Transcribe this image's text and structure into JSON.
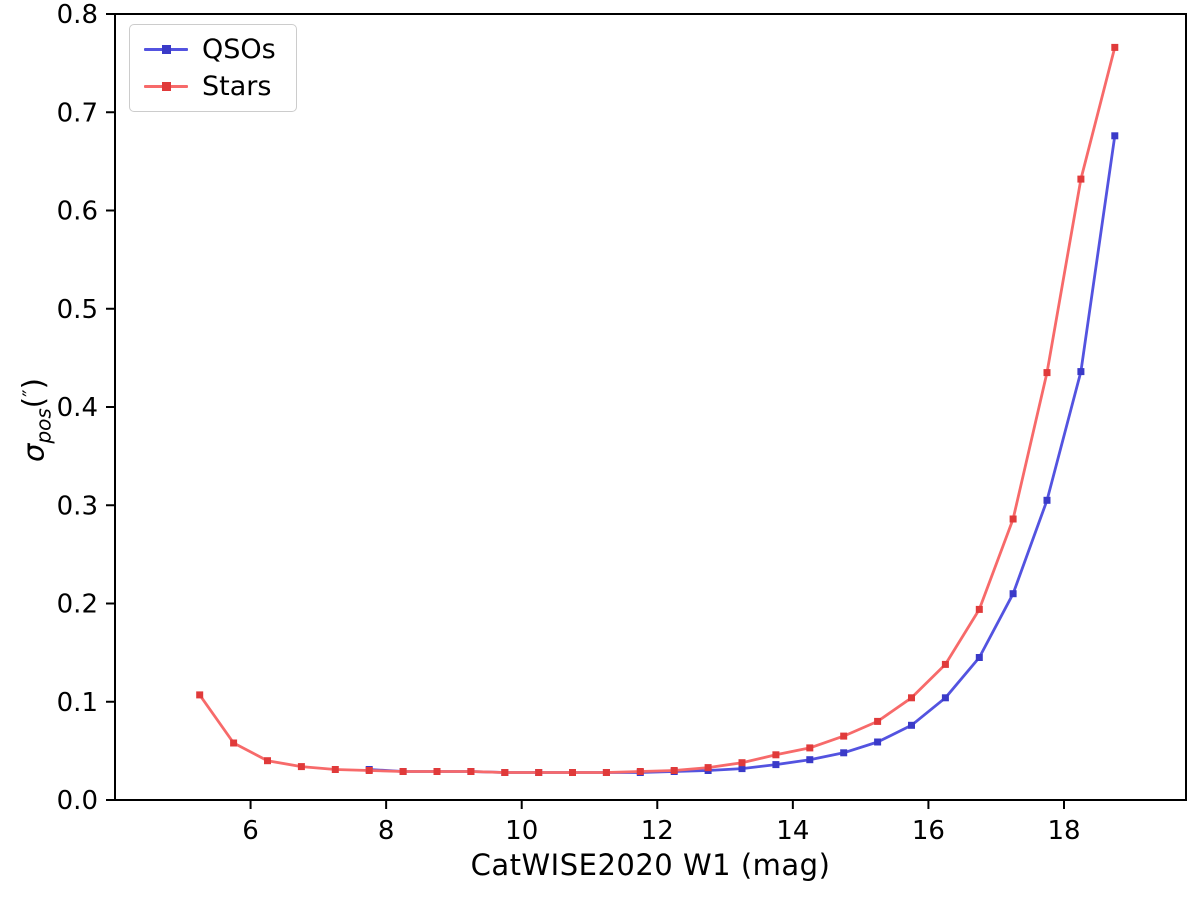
{
  "figure": {
    "background": "#ffffff",
    "frame_color": "#000000"
  },
  "chart_data": {
    "type": "line",
    "title": "",
    "xlabel": "CatWISE2020 W1 (mag)",
    "ylabel_parts": {
      "symbol": "σ",
      "subscript": "pos",
      "paren_open": "(",
      "primes": "″",
      "paren_close": ")"
    },
    "xlim": [
      4.0,
      19.8
    ],
    "ylim": [
      0.0,
      0.8
    ],
    "xticks": [
      6,
      8,
      10,
      12,
      14,
      16,
      18
    ],
    "yticks": [
      0.0,
      0.1,
      0.2,
      0.3,
      0.4,
      0.5,
      0.6,
      0.7,
      0.8
    ],
    "grid": false,
    "legend": {
      "position": "upper-left",
      "border_color": "#cccccc"
    },
    "series": [
      {
        "name": "QSOs",
        "marker": "square",
        "line_color": "#5353e0",
        "marker_color": "#3a3ac8",
        "x": [
          7.75,
          8.25,
          8.75,
          9.25,
          9.75,
          10.25,
          10.75,
          11.25,
          11.75,
          12.25,
          12.75,
          13.25,
          13.75,
          14.25,
          14.75,
          15.25,
          15.75,
          16.25,
          16.75,
          17.25,
          17.75,
          18.25,
          18.75
        ],
        "y": [
          0.031,
          0.029,
          0.029,
          0.029,
          0.028,
          0.028,
          0.028,
          0.028,
          0.028,
          0.029,
          0.03,
          0.032,
          0.036,
          0.041,
          0.048,
          0.059,
          0.076,
          0.104,
          0.145,
          0.21,
          0.305,
          0.436,
          0.676
        ]
      },
      {
        "name": "Stars",
        "marker": "square",
        "line_color": "#f76a6a",
        "marker_color": "#e03a3a",
        "x": [
          5.25,
          5.75,
          6.25,
          6.75,
          7.25,
          7.75,
          8.25,
          8.75,
          9.25,
          9.75,
          10.25,
          10.75,
          11.25,
          11.75,
          12.25,
          12.75,
          13.25,
          13.75,
          14.25,
          14.75,
          15.25,
          15.75,
          16.25,
          16.75,
          17.25,
          17.75,
          18.25,
          18.75
        ],
        "y": [
          0.107,
          0.058,
          0.04,
          0.034,
          0.031,
          0.03,
          0.029,
          0.029,
          0.029,
          0.028,
          0.028,
          0.028,
          0.028,
          0.029,
          0.03,
          0.033,
          0.038,
          0.046,
          0.053,
          0.065,
          0.08,
          0.104,
          0.138,
          0.194,
          0.286,
          0.435,
          0.632,
          0.766
        ]
      }
    ]
  }
}
